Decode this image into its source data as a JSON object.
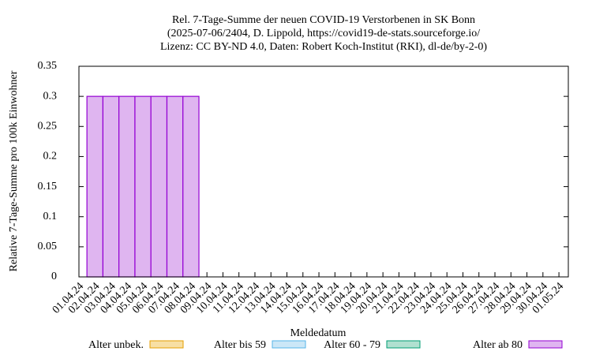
{
  "chart_data": {
    "type": "stacked_bar",
    "title": [
      "Rel. 7-Tage-Summe der neuen COVID-19 Verstorbenen in SK Bonn",
      "(2025-07-06/2404, D. Lippold, https://covid19-de-stats.sourceforge.io/",
      "Lizenz: CC BY-ND 4.0, Daten: Robert Koch-Institut (RKI), dl-de/by-2-0)"
    ],
    "x_label": "Meldedatum",
    "y_label": "Relative 7-Tage-Summe pro 100k Einwohner",
    "categories": [
      "01.04.24",
      "02.04.24",
      "03.04.24",
      "04.04.24",
      "05.04.24",
      "06.04.24",
      "07.04.24",
      "08.04.24",
      "09.04.24",
      "10.04.24",
      "11.04.24",
      "12.04.24",
      "13.04.24",
      "14.04.24",
      "15.04.24",
      "16.04.24",
      "17.04.24",
      "18.04.24",
      "19.04.24",
      "20.04.24",
      "21.04.24",
      "22.04.24",
      "23.04.24",
      "24.04.24",
      "25.04.24",
      "26.04.24",
      "27.04.24",
      "28.04.24",
      "29.04.24",
      "30.04.24",
      "01.05.24"
    ],
    "series": [
      {
        "name": "Alter unbek.",
        "color": "#f7dfa4",
        "edgecolor": "#e69f00",
        "values": [
          0,
          0,
          0,
          0,
          0,
          0,
          0,
          0,
          0,
          0,
          0,
          0,
          0,
          0,
          0,
          0,
          0,
          0,
          0,
          0,
          0,
          0,
          0,
          0,
          0,
          0,
          0,
          0,
          0,
          0,
          0
        ]
      },
      {
        "name": "Alter bis 59",
        "color": "#cbe7f7",
        "edgecolor": "#56b4e9",
        "values": [
          0,
          0,
          0,
          0,
          0,
          0,
          0,
          0,
          0,
          0,
          0,
          0,
          0,
          0,
          0,
          0,
          0,
          0,
          0,
          0,
          0,
          0,
          0,
          0,
          0,
          0,
          0,
          0,
          0,
          0,
          0
        ]
      },
      {
        "name": "Alter 60 - 79",
        "color": "#b0e0d0",
        "edgecolor": "#009e73",
        "values": [
          0,
          0,
          0,
          0,
          0,
          0,
          0,
          0,
          0,
          0,
          0,
          0,
          0,
          0,
          0,
          0,
          0,
          0,
          0,
          0,
          0,
          0,
          0,
          0,
          0,
          0,
          0,
          0,
          0,
          0,
          0
        ]
      },
      {
        "name": "Alter ab 80",
        "color": "#dfb5f0",
        "edgecolor": "#9400d3",
        "values": [
          0,
          0.3,
          0.3,
          0.3,
          0.3,
          0.3,
          0.3,
          0.3,
          0,
          0,
          0,
          0,
          0,
          0,
          0,
          0,
          0,
          0,
          0,
          0,
          0,
          0,
          0,
          0,
          0,
          0,
          0,
          0,
          0,
          0,
          0
        ]
      }
    ],
    "ylim": [
      0,
      0.35
    ],
    "yticks": [
      0,
      0.05,
      0.1,
      0.15,
      0.2,
      0.25,
      0.3,
      0.35
    ]
  }
}
